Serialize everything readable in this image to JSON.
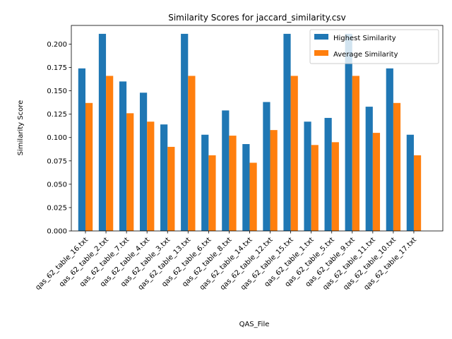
{
  "chart_data": {
    "type": "bar",
    "title": "Similarity Scores for jaccard_similarity.csv",
    "xlabel": "QAS_File",
    "ylabel": "Similarity Score",
    "ylim": [
      0,
      0.22
    ],
    "yticks": [
      "0.000",
      "0.025",
      "0.050",
      "0.075",
      "0.100",
      "0.125",
      "0.150",
      "0.175",
      "0.200"
    ],
    "yticks_values": [
      0,
      0.025,
      0.05,
      0.075,
      0.1,
      0.125,
      0.15,
      0.175,
      0.2
    ],
    "grid": false,
    "legend_position": "top-right",
    "categories": [
      "qas_62_table_16.txt",
      "qas_62_table_2.txt",
      "qas_62_table_7.txt",
      "qas_62_table_4.txt",
      "qas_62_table_3.txt",
      "qas_62_table_13.txt",
      "qas_62_table_6.txt",
      "qas_62_table_8.txt",
      "qas_62_table_14.txt",
      "qas_62_table_12.txt",
      "qas_62_table_15.txt",
      "qas_62_table_1.txt",
      "qas_62_table_5.txt",
      "qas_62_table_9.txt",
      "qas_62_table_11.txt",
      "qas_62_table_10.txt",
      "qas_62_table_17.txt"
    ],
    "series": [
      {
        "name": "Highest Similarity",
        "color": "#1f77b4",
        "values": [
          0.174,
          0.211,
          0.16,
          0.148,
          0.114,
          0.211,
          0.103,
          0.129,
          0.093,
          0.138,
          0.211,
          0.117,
          0.121,
          0.211,
          0.133,
          0.174,
          0.103
        ]
      },
      {
        "name": "Average Similarity",
        "color": "#ff7f0e",
        "values": [
          0.137,
          0.166,
          0.126,
          0.117,
          0.09,
          0.166,
          0.081,
          0.102,
          0.073,
          0.108,
          0.166,
          0.092,
          0.095,
          0.166,
          0.105,
          0.137,
          0.081
        ]
      }
    ]
  }
}
